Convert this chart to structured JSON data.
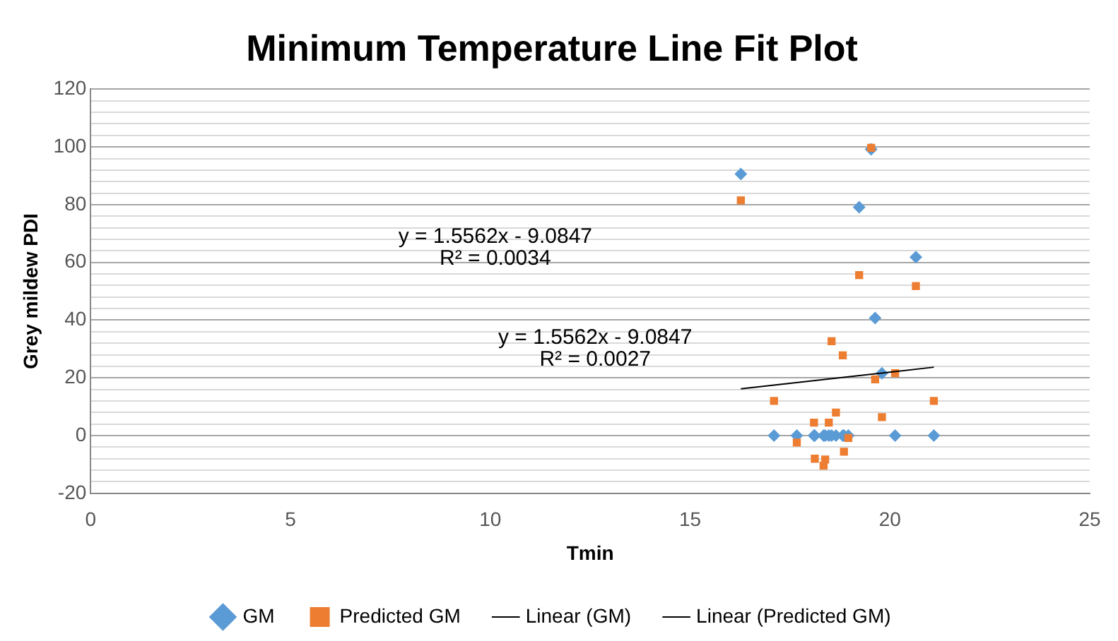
{
  "chart_data": {
    "type": "scatter",
    "title": "Minimum Temperature Line Fit Plot",
    "xlabel": "Tmin",
    "ylabel": "Grey mildew PDI",
    "x": [
      16.27,
      19.53,
      19.23,
      20.65,
      18.54,
      18.82,
      19.63,
      20.13,
      17.1,
      21.1,
      19.8,
      18.65,
      18.1,
      18.47,
      18.96,
      17.67,
      18.85,
      18.12,
      18.38,
      18.34
    ],
    "series": [
      {
        "name": "GM",
        "color": "#5b9bd5",
        "marker": "diamond",
        "values": [
          90.6,
          99.2,
          79.1,
          61.8,
          0,
          0,
          40.7,
          0,
          0,
          0,
          21.6,
          0,
          0,
          0,
          0,
          0,
          0,
          0,
          0,
          0
        ]
      },
      {
        "name": "Predicted GM",
        "color": "#ed7d31",
        "marker": "square",
        "values": [
          81.5,
          99.7,
          55.6,
          51.8,
          32.7,
          27.8,
          19.5,
          21.6,
          12.0,
          12.0,
          6.4,
          8.0,
          4.5,
          4.5,
          -0.8,
          -2.4,
          -5.6,
          -8.0,
          -8.3,
          -10.4
        ]
      },
      {
        "name": "Linear (GM)",
        "type": "line",
        "color": "#000000",
        "marker": "none",
        "values": [
          null,
          null,
          null,
          null,
          null,
          null,
          null,
          null,
          null,
          null,
          null,
          null,
          null,
          null,
          null,
          null,
          null,
          null,
          null,
          null
        ]
      },
      {
        "name": "Linear (Predicted GM)",
        "type": "line",
        "color": "#000000",
        "marker": "none",
        "x": [
          16.27,
          21.1
        ],
        "values": [
          16.2,
          23.7
        ]
      }
    ],
    "xlim": [
      0,
      25
    ],
    "xticks": [
      0,
      5,
      10,
      15,
      20,
      25
    ],
    "ylim": [
      -20,
      120
    ],
    "yticks": [
      -20,
      {
        "value": -16,
        "label": null
      },
      {
        "value": -12,
        "label": null
      },
      {
        "value": -8,
        "label": null
      },
      {
        "value": -4,
        "label": null
      },
      0,
      {
        "value": 4,
        "label": null
      },
      {
        "value": 8,
        "label": null
      },
      {
        "value": 12,
        "label": null
      },
      {
        "value": 16,
        "label": null
      },
      20,
      {
        "value": 24,
        "label": null
      },
      {
        "value": 28,
        "label": null
      },
      {
        "value": 32,
        "label": null
      },
      {
        "value": 36,
        "label": null
      },
      40,
      {
        "value": 44,
        "label": null
      },
      {
        "value": 48,
        "label": null
      },
      {
        "value": 52,
        "label": null
      },
      {
        "value": 56,
        "label": null
      },
      60,
      {
        "value": 64,
        "label": null
      },
      {
        "value": 68,
        "label": null
      },
      {
        "value": 72,
        "label": null
      },
      {
        "value": 76,
        "label": null
      },
      80,
      {
        "value": 84,
        "label": null
      },
      {
        "value": 88,
        "label": null
      },
      {
        "value": 92,
        "label": null
      },
      {
        "value": 96,
        "label": null
      },
      100,
      {
        "value": 104,
        "label": null
      },
      {
        "value": 108,
        "label": null
      },
      {
        "value": 112,
        "label": null
      },
      {
        "value": 116,
        "label": null
      },
      120
    ],
    "grid": "y",
    "legend": "bottom",
    "annotations": [
      "y = 1.5562x - 9.0847",
      "R² = 0.0034",
      "y = 1.5562x - 9.0847",
      "R² = 0.0027"
    ]
  }
}
